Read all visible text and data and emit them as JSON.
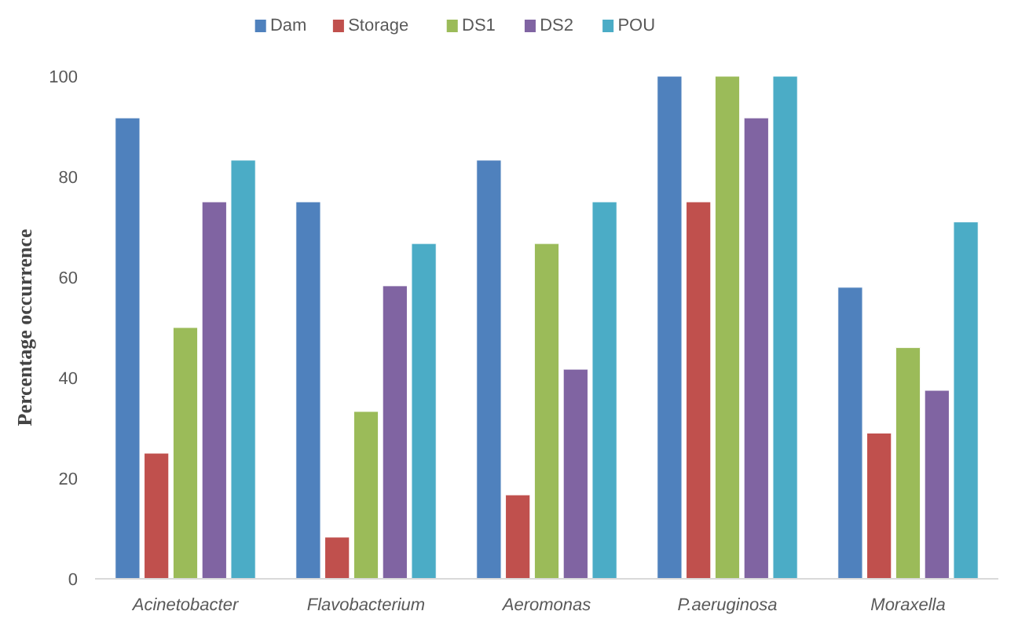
{
  "chart_data": {
    "type": "bar",
    "ylabel": "Percentage occurrence",
    "categories": [
      "Acinetobacter",
      "Flavobacterium",
      "Aeromonas",
      "P.aeruginosa",
      "Moraxella"
    ],
    "series": [
      {
        "name": "Dam",
        "color": "#4f81bd",
        "values": [
          91.7,
          75,
          83.3,
          100,
          58
        ]
      },
      {
        "name": "Storage",
        "color": "#c0504d",
        "values": [
          25,
          8.3,
          16.7,
          75,
          29
        ]
      },
      {
        "name": "DS1",
        "color": "#9bbb59",
        "values": [
          50,
          33.3,
          66.7,
          100,
          46
        ]
      },
      {
        "name": "DS2",
        "color": "#8064a2",
        "values": [
          75,
          58.3,
          41.7,
          91.7,
          37.5
        ]
      },
      {
        "name": "POU",
        "color": "#4bacc6",
        "values": [
          83.3,
          66.7,
          75,
          100,
          71
        ]
      }
    ],
    "ylim": [
      0,
      100
    ],
    "yticks": [
      0,
      20,
      40,
      60,
      80,
      100
    ],
    "grid": false,
    "legend": "top"
  }
}
